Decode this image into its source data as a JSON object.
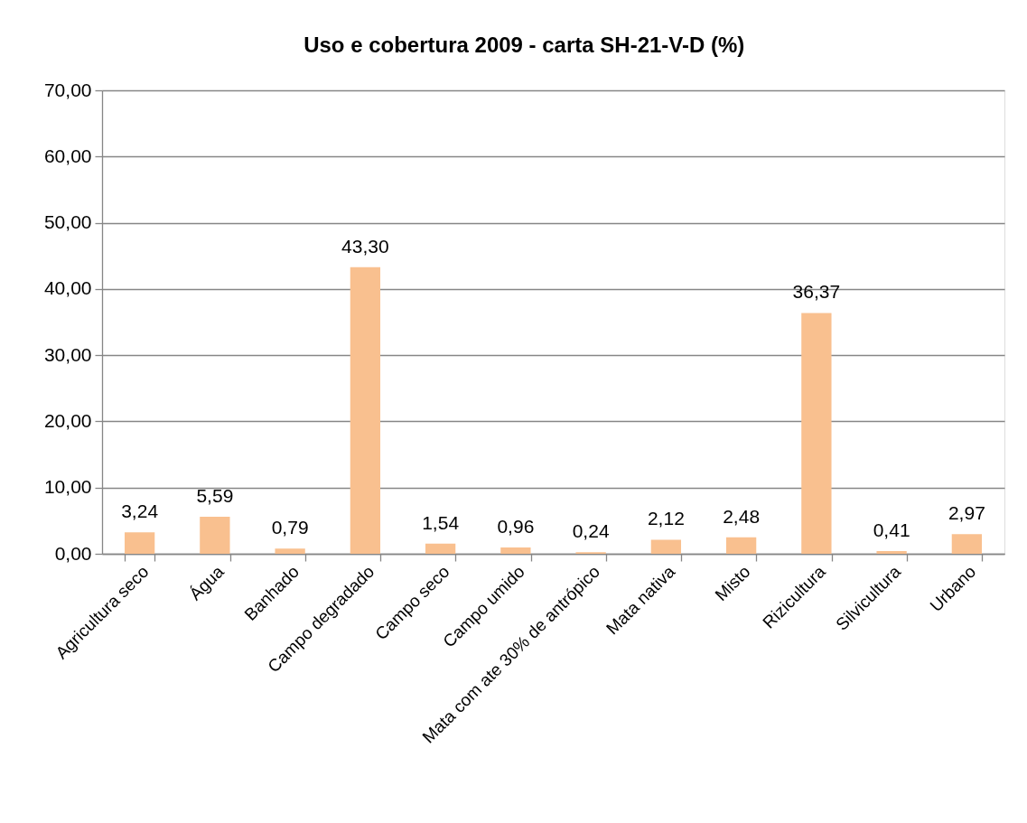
{
  "chart_data": {
    "type": "bar",
    "title": "Uso e cobertura 2009 - carta SH-21-V-D (%)",
    "categories": [
      "Agricultura seco",
      "Água",
      "Banhado",
      "Campo degradado",
      "Campo seco",
      "Campo umido",
      "Mata com ate 30% de antrópico",
      "Mata nativa",
      "Misto",
      "Rizicultura",
      "Silvicultura",
      "Urbano"
    ],
    "values": [
      3.24,
      5.59,
      0.79,
      43.3,
      1.54,
      0.96,
      0.24,
      2.12,
      2.48,
      36.37,
      0.41,
      2.97
    ],
    "value_labels": [
      "3,24",
      "5,59",
      "0,79",
      "43,30",
      "1,54",
      "0,96",
      "0,24",
      "2,12",
      "2,48",
      "36,37",
      "0,41",
      "2,97"
    ],
    "color": "#f9c08f",
    "ylim": [
      0,
      70
    ],
    "yticks": [
      {
        "value": 0,
        "label": "0,00"
      },
      {
        "value": 10,
        "label": "10,00"
      },
      {
        "value": 20,
        "label": "20,00"
      },
      {
        "value": 30,
        "label": "30,00"
      },
      {
        "value": 40,
        "label": "40,00"
      },
      {
        "value": 50,
        "label": "50,00"
      },
      {
        "value": 60,
        "label": "60,00"
      },
      {
        "value": 70,
        "label": "70,00"
      }
    ],
    "grid": "y"
  }
}
